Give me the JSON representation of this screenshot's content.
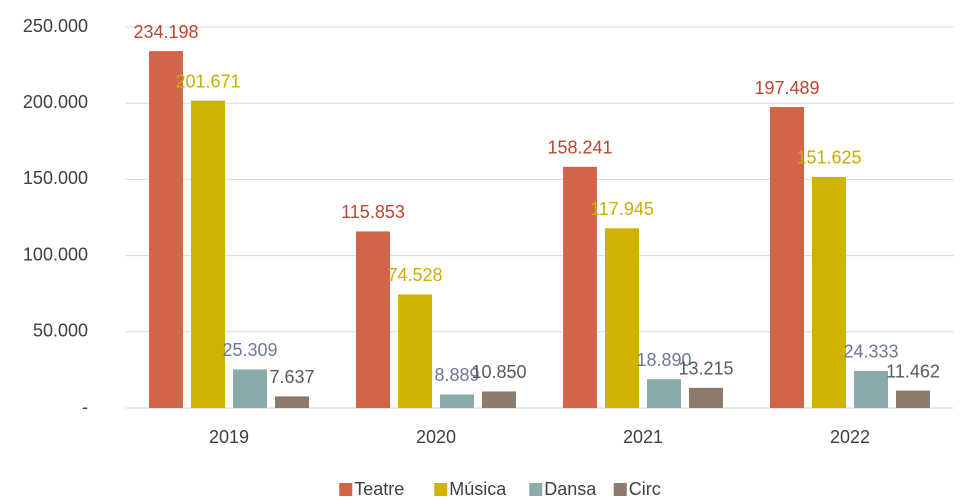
{
  "chart_data": {
    "type": "bar",
    "categories": [
      "2019",
      "2020",
      "2021",
      "2022"
    ],
    "series": [
      {
        "name": "Teatre",
        "color": "#d2644a",
        "label_color": "#c0452e",
        "values": [
          234198,
          115853,
          158241,
          197489
        ],
        "value_labels": [
          "234.198",
          "115.853",
          "158.241",
          "197.489"
        ]
      },
      {
        "name": "Música",
        "color": "#ccb400",
        "label_color": "#c9ae00",
        "values": [
          201671,
          74528,
          117945,
          151625
        ],
        "value_labels": [
          "201.671",
          "74.528",
          "117.945",
          "151.625"
        ]
      },
      {
        "name": "Dansa",
        "color": "#8aabab",
        "label_color": "#6b7896",
        "values": [
          25309,
          8889,
          18890,
          24333
        ],
        "value_labels": [
          "25.309",
          "8.889",
          "18.890",
          "24.333"
        ]
      },
      {
        "name": "Circ",
        "color": "#8c7a6c",
        "label_color": "#595959",
        "values": [
          7637,
          10850,
          13215,
          11462
        ],
        "value_labels": [
          "7.637",
          "10.850",
          "13.215",
          "11.462"
        ]
      }
    ],
    "ylim": [
      0,
      250000
    ],
    "yticks": [
      {
        "value": 0,
        "label": "-"
      },
      {
        "value": 50000,
        "label": "50.000"
      },
      {
        "value": 100000,
        "label": "100.000"
      },
      {
        "value": 150000,
        "label": "150.000"
      },
      {
        "value": 200000,
        "label": "200.000"
      },
      {
        "value": 250000,
        "label": "250.000"
      }
    ],
    "grid": true,
    "legend": "bottom"
  }
}
